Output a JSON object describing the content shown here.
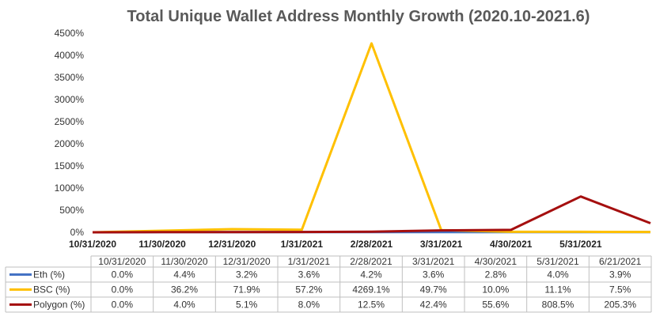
{
  "chart_data": {
    "type": "line",
    "title": "Total Unique Wallet Address Monthly Growth (2020.10-2021.6)",
    "x": [
      "10/31/2020",
      "11/30/2020",
      "12/31/2020",
      "1/31/2021",
      "2/28/2021",
      "3/31/2021",
      "4/30/2021",
      "5/31/2021",
      "6/21/2021"
    ],
    "x_axis_labels": [
      "10/31/2020",
      "11/30/2020",
      "12/31/2020",
      "1/31/2021",
      "2/28/2021",
      "3/31/2021",
      "4/30/2021",
      "5/31/2021"
    ],
    "ylim": [
      0,
      4500
    ],
    "yticks": [
      0,
      500,
      1000,
      1500,
      2000,
      2500,
      3000,
      3500,
      4000,
      4500
    ],
    "ytick_labels": [
      "0%",
      "500%",
      "1000%",
      "1500%",
      "2000%",
      "2500%",
      "3000%",
      "3500%",
      "4000%",
      "4500%"
    ],
    "grid": false,
    "legend": "data-table-bottom",
    "series": [
      {
        "name": "Eth (%)",
        "color": "#4472C4",
        "values": [
          0.0,
          4.4,
          3.2,
          3.6,
          4.2,
          3.6,
          2.8,
          4.0,
          3.9
        ],
        "labels": [
          "0.0%",
          "4.4%",
          "3.2%",
          "3.6%",
          "4.2%",
          "3.6%",
          "2.8%",
          "4.0%",
          "3.9%"
        ]
      },
      {
        "name": "BSC (%)",
        "color": "#FFC000",
        "values": [
          0.0,
          36.2,
          71.9,
          57.2,
          4269.1,
          49.7,
          10.0,
          11.1,
          7.5
        ],
        "labels": [
          "0.0%",
          "36.2%",
          "71.9%",
          "57.2%",
          "4269.1%",
          "49.7%",
          "10.0%",
          "11.1%",
          "7.5%"
        ]
      },
      {
        "name": "Polygon (%)",
        "color": "#A50F0F",
        "values": [
          0.0,
          4.0,
          5.1,
          8.0,
          12.5,
          42.4,
          55.6,
          808.5,
          205.3
        ],
        "labels": [
          "0.0%",
          "4.0%",
          "5.1%",
          "8.0%",
          "12.5%",
          "42.4%",
          "55.6%",
          "808.5%",
          "205.3%"
        ]
      }
    ]
  }
}
